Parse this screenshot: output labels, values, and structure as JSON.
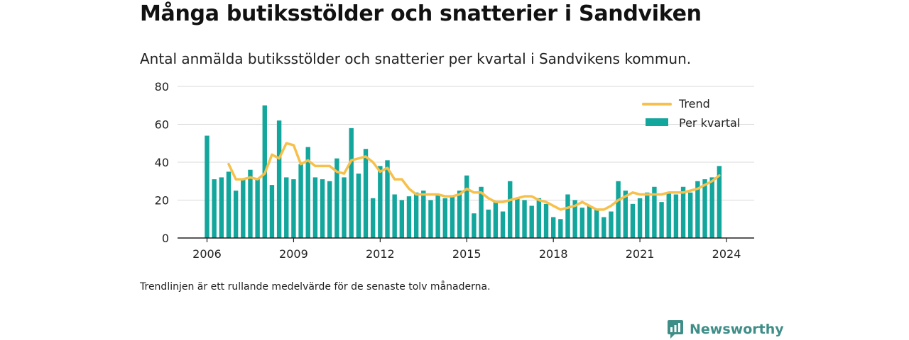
{
  "header": {
    "title": "Många butiksstölder och snatterier i Sandviken",
    "subtitle": "Antal anmälda butiksstölder och snatterier per kvartal i Sandvikens kommun."
  },
  "footnote": "Trendlinjen är ett rullande medelvärde för de senaste tolv månaderna.",
  "brand": {
    "name": "Newsworthy",
    "icon": "newsworthy-logo-icon",
    "color": "#3e8e87"
  },
  "chart_data": {
    "type": "bar",
    "x_start": "2006 Q1",
    "ylim": [
      0,
      80
    ],
    "yticks": [
      "0",
      "20",
      "40",
      "60",
      "80"
    ],
    "xticks": [
      "2006",
      "2009",
      "2012",
      "2015",
      "2018",
      "2021",
      "2024"
    ],
    "grid": true,
    "legend_position": "top-right",
    "colors": {
      "bars": "#13a69c",
      "trend": "#f7c04a"
    },
    "series": [
      {
        "name": "Per kvartal",
        "values": [
          54,
          31,
          32,
          35,
          25,
          31,
          36,
          31,
          70,
          28,
          62,
          32,
          31,
          39,
          48,
          32,
          31,
          30,
          42,
          32,
          58,
          34,
          47,
          21,
          38,
          41,
          23,
          20,
          22,
          24,
          25,
          20,
          23,
          21,
          22,
          25,
          33,
          13,
          27,
          15,
          19,
          14,
          30,
          21,
          20,
          17,
          21,
          18,
          11,
          10,
          23,
          20,
          16,
          17,
          15,
          11,
          14,
          30,
          25,
          18,
          21,
          24,
          27,
          19,
          24,
          23,
          27,
          24,
          30,
          31,
          32,
          38
        ]
      },
      {
        "name": "Trend",
        "values": [
          null,
          null,
          null,
          39,
          31,
          31,
          32,
          31,
          34,
          44,
          42,
          50,
          49,
          39,
          41,
          38,
          38,
          38,
          35,
          34,
          41,
          42,
          43,
          40,
          35,
          37,
          31,
          31,
          26,
          23,
          23,
          23,
          23,
          22,
          22,
          23,
          26,
          24,
          24,
          21,
          19,
          19,
          20,
          21,
          22,
          22,
          20,
          19,
          17,
          15,
          16,
          17,
          19,
          17,
          15,
          15,
          17,
          20,
          22,
          24,
          23,
          23,
          23,
          23,
          24,
          24,
          24,
          25,
          26,
          28,
          30,
          33
        ]
      }
    ]
  }
}
